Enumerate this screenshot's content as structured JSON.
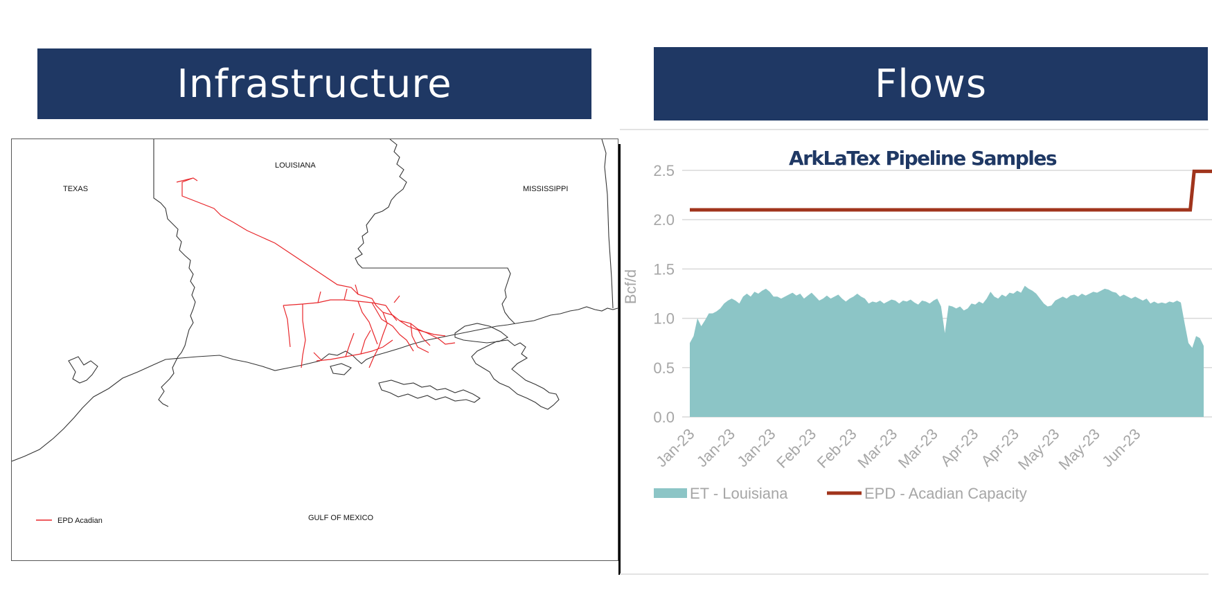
{
  "banners": {
    "infrastructure": "Infrastructure",
    "flows": "Flows"
  },
  "map": {
    "labels": {
      "texas": "TEXAS",
      "louisiana": "LOUISIANA",
      "mississippi": "MISSISSIPPI",
      "gulf": "GULF OF MEXICO"
    },
    "legend_label": "EPD Acadian",
    "pipeline_color": "#e8262a",
    "border_color": "#333333"
  },
  "chart_data": {
    "type": "area",
    "title": "ArkLaTex Pipeline Samples",
    "ylabel": "Bcf/d",
    "xlabel": "",
    "ylim": [
      0,
      2.5
    ],
    "yticks": [
      "0.0",
      "0.5",
      "1.0",
      "1.5",
      "2.0",
      "2.5"
    ],
    "xtick_labels": [
      "Jan-23",
      "Jan-23",
      "Jan-23",
      "Feb-23",
      "Feb-23",
      "Mar-23",
      "Mar-23",
      "Apr-23",
      "Apr-23",
      "May-23",
      "May-23",
      "Jun-23"
    ],
    "grid": true,
    "legend_position": "bottom",
    "series": [
      {
        "name": "ET - Louisiana",
        "type": "area",
        "color": "#8cc5c6",
        "values": [
          0.75,
          0.82,
          1.0,
          0.92,
          0.98,
          1.05,
          1.05,
          1.07,
          1.1,
          1.15,
          1.18,
          1.2,
          1.18,
          1.15,
          1.22,
          1.25,
          1.22,
          1.27,
          1.25,
          1.28,
          1.3,
          1.27,
          1.22,
          1.22,
          1.2,
          1.22,
          1.24,
          1.26,
          1.23,
          1.25,
          1.2,
          1.23,
          1.26,
          1.22,
          1.18,
          1.2,
          1.23,
          1.2,
          1.22,
          1.24,
          1.2,
          1.17,
          1.2,
          1.22,
          1.25,
          1.22,
          1.2,
          1.15,
          1.17,
          1.16,
          1.18,
          1.15,
          1.17,
          1.19,
          1.18,
          1.15,
          1.18,
          1.17,
          1.19,
          1.16,
          1.14,
          1.18,
          1.17,
          1.15,
          1.18,
          1.2,
          1.12,
          0.85,
          1.13,
          1.12,
          1.1,
          1.12,
          1.08,
          1.1,
          1.15,
          1.14,
          1.17,
          1.15,
          1.2,
          1.27,
          1.22,
          1.2,
          1.24,
          1.22,
          1.26,
          1.25,
          1.28,
          1.26,
          1.33,
          1.3,
          1.28,
          1.25,
          1.2,
          1.15,
          1.12,
          1.13,
          1.18,
          1.2,
          1.22,
          1.2,
          1.23,
          1.24,
          1.22,
          1.25,
          1.23,
          1.25,
          1.27,
          1.26,
          1.28,
          1.3,
          1.29,
          1.27,
          1.26,
          1.22,
          1.24,
          1.22,
          1.2,
          1.22,
          1.2,
          1.18,
          1.2,
          1.15,
          1.17,
          1.15,
          1.16,
          1.15,
          1.17,
          1.16,
          1.18,
          1.16,
          0.95,
          0.75,
          0.7,
          0.82,
          0.8,
          0.72
        ]
      },
      {
        "name": "EPD - Acadian Capacity",
        "type": "line",
        "color": "#a0341c",
        "values": [
          2.1,
          2.1,
          2.1,
          2.1,
          2.1,
          2.1,
          2.1,
          2.1,
          2.1,
          2.1,
          2.1,
          2.1,
          2.1,
          2.1,
          2.1,
          2.1,
          2.1,
          2.1,
          2.1,
          2.1,
          2.1,
          2.1,
          2.1,
          2.1,
          2.1,
          2.1,
          2.1,
          2.1,
          2.1,
          2.1,
          2.1,
          2.1,
          2.1,
          2.1,
          2.1,
          2.1,
          2.1,
          2.1,
          2.1,
          2.1,
          2.1,
          2.1,
          2.1,
          2.1,
          2.1,
          2.1,
          2.1,
          2.1,
          2.1,
          2.1,
          2.1,
          2.1,
          2.1,
          2.1,
          2.1,
          2.1,
          2.1,
          2.1,
          2.1,
          2.1,
          2.1,
          2.1,
          2.1,
          2.1,
          2.1,
          2.1,
          2.1,
          2.1,
          2.1,
          2.1,
          2.1,
          2.1,
          2.1,
          2.1,
          2.1,
          2.1,
          2.1,
          2.1,
          2.1,
          2.1,
          2.1,
          2.1,
          2.1,
          2.1,
          2.1,
          2.1,
          2.1,
          2.1,
          2.1,
          2.1,
          2.1,
          2.1,
          2.1,
          2.1,
          2.1,
          2.1,
          2.1,
          2.1,
          2.1,
          2.1,
          2.1,
          2.1,
          2.1,
          2.1,
          2.1,
          2.1,
          2.1,
          2.1,
          2.1,
          2.1,
          2.1,
          2.1,
          2.1,
          2.1,
          2.1,
          2.1,
          2.1,
          2.1,
          2.1,
          2.1,
          2.1,
          2.1,
          2.1,
          2.1,
          2.1,
          2.1,
          2.1,
          2.1,
          2.1,
          2.1,
          2.1,
          2.49,
          2.49,
          2.49,
          2.49,
          2.49,
          2.49
        ]
      }
    ]
  }
}
